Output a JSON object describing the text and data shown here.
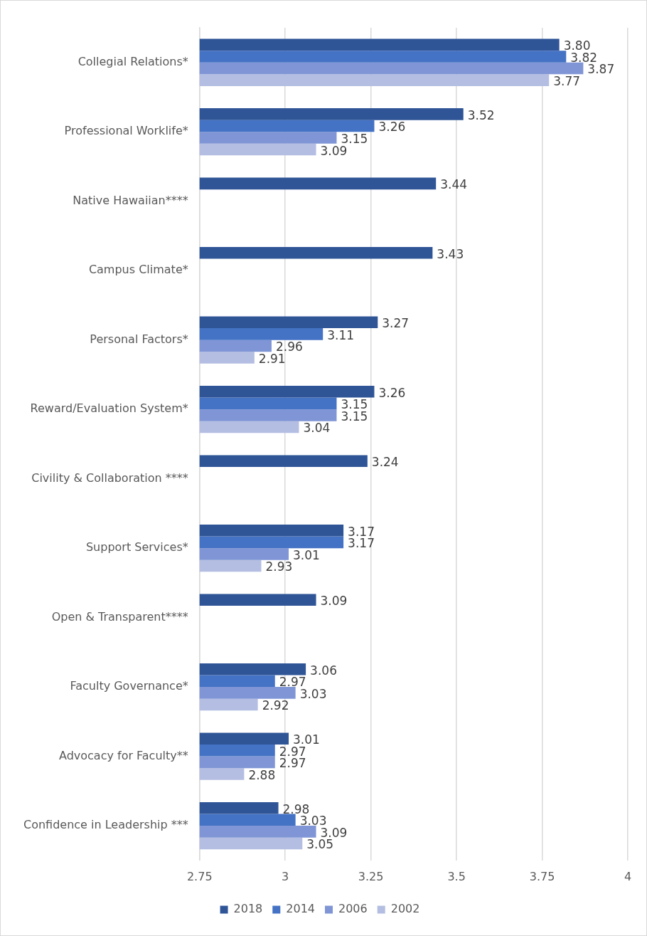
{
  "chart_data": {
    "type": "bar",
    "orientation": "horizontal",
    "categories": [
      "Collegial Relations*",
      "Professional Worklife*",
      "Native Hawaiian****",
      "Campus Climate*",
      "Personal Factors*",
      "Reward/Evaluation System*",
      "Civility & Collaboration ****",
      "Support Services*",
      "Open & Transparent****",
      "Faculty Governance*",
      "Advocacy for Faculty**",
      "Confidence in Leadership ***"
    ],
    "series": [
      {
        "name": "2018",
        "color": "#2f5597",
        "values": [
          3.8,
          3.52,
          3.44,
          3.43,
          3.27,
          3.26,
          3.24,
          3.17,
          3.09,
          3.06,
          3.01,
          2.98
        ],
        "value_labels": [
          "3.80",
          "3.52",
          "3.44",
          "3.43",
          "3.27",
          "3.26",
          "3.24",
          "3.17",
          "3.09",
          "3.06",
          "3.01",
          "2.98"
        ]
      },
      {
        "name": "2014",
        "color": "#4472c4",
        "values": [
          3.82,
          3.26,
          null,
          null,
          3.11,
          3.15,
          null,
          3.17,
          null,
          2.97,
          2.97,
          3.03
        ],
        "value_labels": [
          "3.82",
          "3.26",
          null,
          null,
          "3.11",
          "3.15",
          null,
          "3.17",
          null,
          "2.97",
          "2.97",
          "3.03"
        ]
      },
      {
        "name": "2006",
        "color": "#7f95d5",
        "values": [
          3.87,
          3.15,
          null,
          null,
          2.96,
          3.15,
          null,
          3.01,
          null,
          3.03,
          2.97,
          3.09
        ],
        "value_labels": [
          "3.87",
          "3.15",
          null,
          null,
          "2.96",
          "3.15",
          null,
          "3.01",
          null,
          "3.03",
          "2.97",
          "3.09"
        ]
      },
      {
        "name": "2002",
        "color": "#b4bee2",
        "values": [
          3.77,
          3.09,
          null,
          null,
          2.91,
          3.04,
          null,
          2.93,
          null,
          2.92,
          2.88,
          3.05
        ],
        "value_labels": [
          "3.77",
          "3.09",
          null,
          null,
          "2.91",
          "3.04",
          null,
          "2.93",
          null,
          "2.92",
          "2.88",
          "3.05"
        ]
      }
    ],
    "xlim": [
      2.75,
      4
    ],
    "xticks": [
      2.75,
      3,
      3.25,
      3.5,
      3.75,
      4
    ],
    "grid": "x",
    "legend": "bottom"
  }
}
